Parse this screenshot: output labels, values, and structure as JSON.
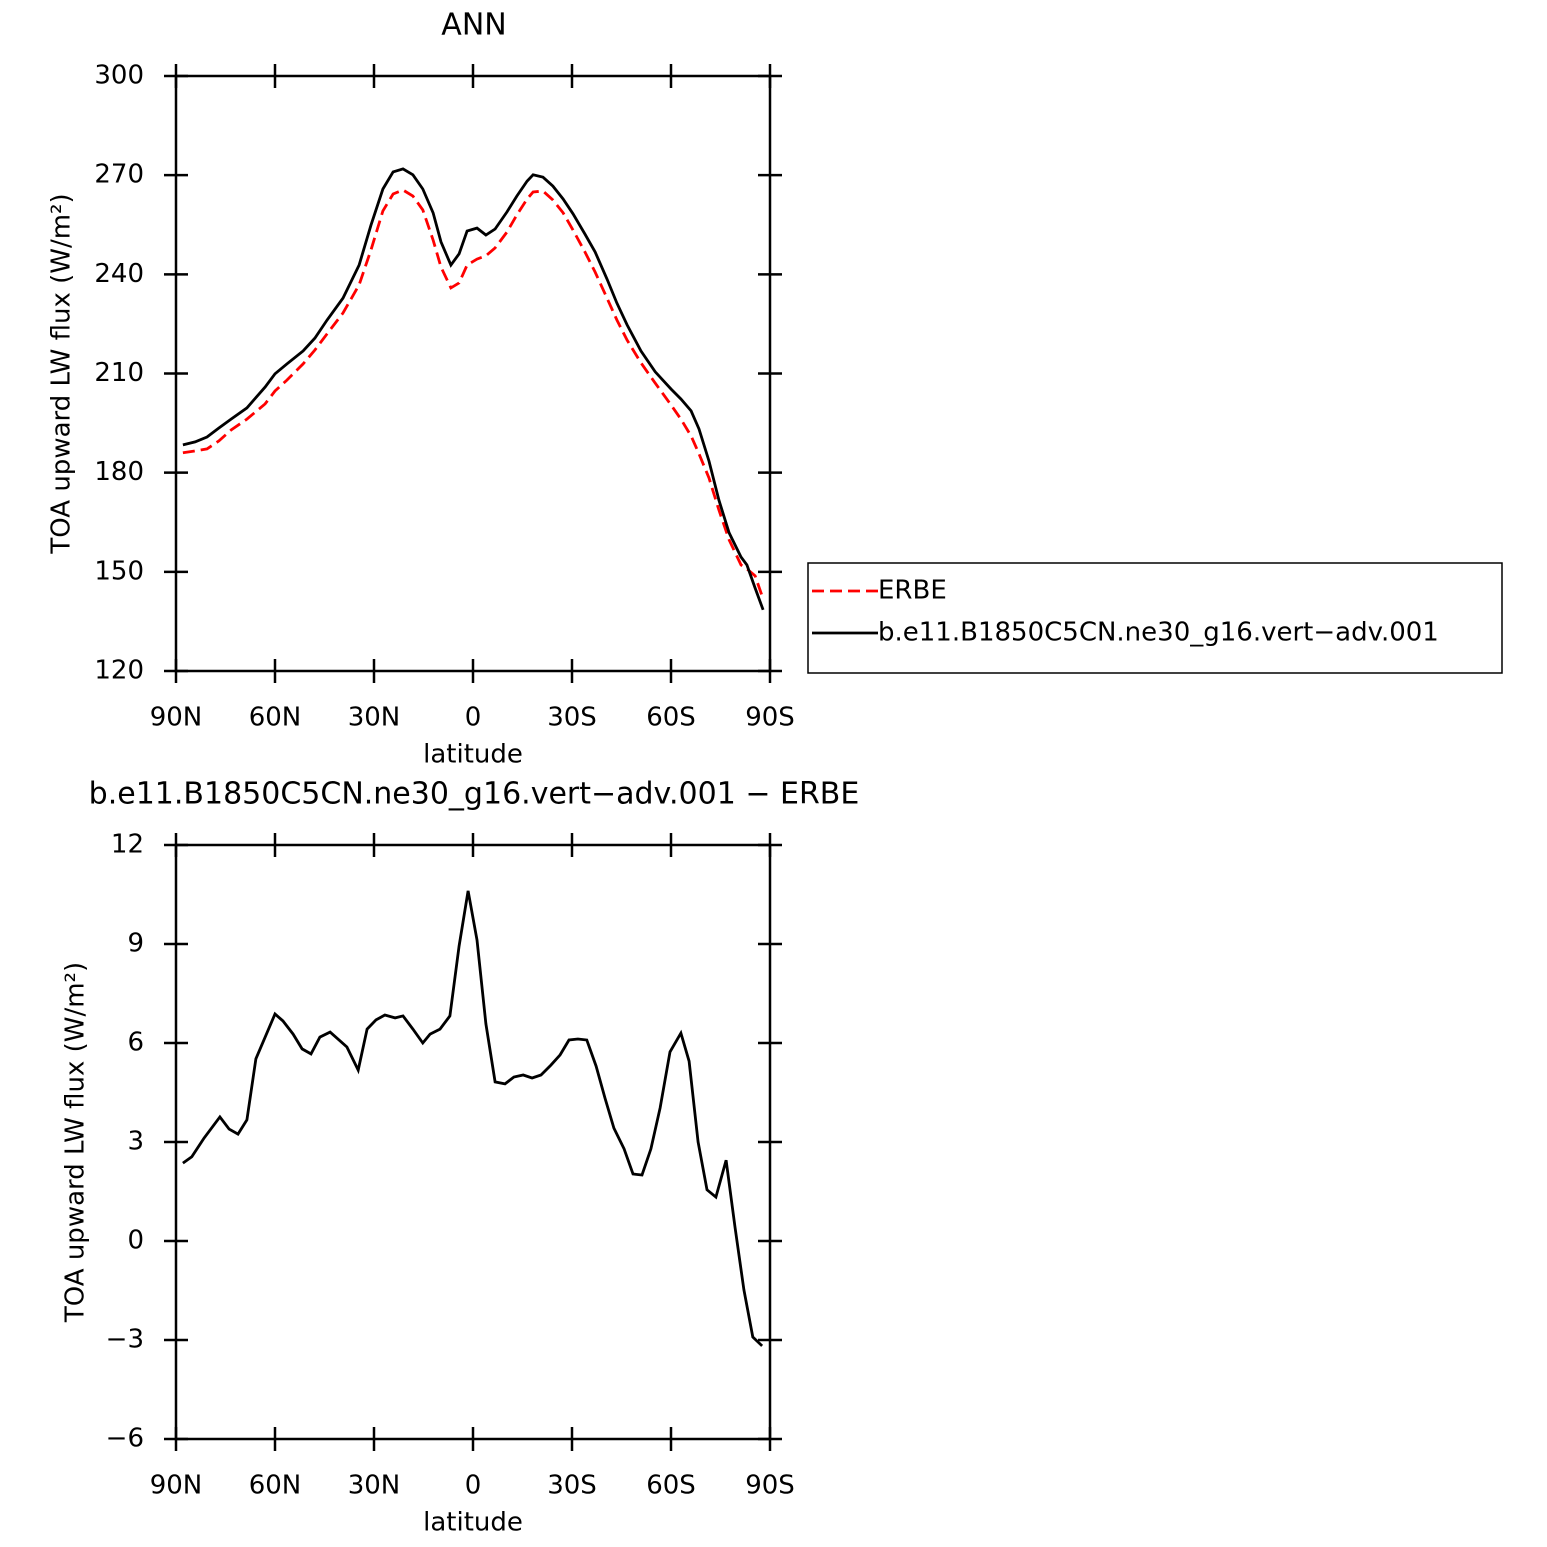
{
  "chart_data": [
    {
      "type": "line",
      "title": "ANN",
      "xlabel": "latitude",
      "ylabel": "TOA upward LW flux (W/m²)",
      "x": [
        87.9,
        84.2,
        80.6,
        77.0,
        73.3,
        68.5,
        63.0,
        60.0,
        56.4,
        51.5,
        47.9,
        44.2,
        39.4,
        34.5,
        30.9,
        27.3,
        24.2,
        21.2,
        18.2,
        15.2,
        12.1,
        9.7,
        6.7,
        4.2,
        1.8,
        -1.2,
        -3.9,
        -6.7,
        -10.3,
        -13.3,
        -16.4,
        -18.2,
        -21.2,
        -24.2,
        -27.3,
        -30.3,
        -33.9,
        -37.0,
        -40.6,
        -43.6,
        -46.7,
        -50.9,
        -55.2,
        -60.0,
        -63.0,
        -66.1,
        -68.5,
        -71.5,
        -74.5,
        -77.6,
        -81.2,
        -83.0,
        -85.5,
        -87.9
      ],
      "series": [
        {
          "name": "ERBE",
          "color": "#ff0000",
          "style": "dashed",
          "values": [
            186.0,
            186.6,
            187.2,
            189.6,
            192.9,
            196.2,
            200.8,
            204.7,
            208.0,
            212.9,
            217.1,
            222.0,
            228.3,
            236.8,
            247.4,
            259.2,
            264.3,
            265.5,
            263.7,
            259.5,
            250.4,
            242.2,
            235.9,
            237.4,
            242.8,
            244.6,
            245.6,
            248.0,
            252.8,
            258.0,
            262.8,
            264.9,
            265.2,
            262.5,
            258.6,
            253.4,
            246.8,
            240.7,
            232.8,
            226.2,
            220.1,
            213.2,
            207.1,
            200.5,
            196.2,
            191.1,
            185.7,
            178.4,
            168.7,
            159.7,
            152.1,
            150.9,
            148.8,
            141.8
          ]
        },
        {
          "name": "b.e11.B1850C5CN.ne30_g16.vert−adv.001",
          "color": "#000000",
          "style": "solid",
          "values": [
            188.4,
            189.3,
            190.8,
            193.5,
            196.2,
            199.6,
            205.9,
            209.9,
            212.9,
            216.8,
            220.7,
            226.2,
            232.8,
            242.8,
            254.9,
            265.8,
            271.0,
            271.9,
            270.1,
            265.8,
            258.6,
            249.8,
            242.8,
            246.2,
            253.1,
            254.0,
            251.9,
            253.7,
            258.9,
            263.7,
            268.2,
            270.1,
            269.4,
            266.7,
            262.8,
            258.3,
            252.2,
            246.8,
            238.6,
            231.3,
            224.7,
            216.8,
            210.5,
            205.3,
            202.3,
            198.7,
            193.2,
            183.5,
            171.7,
            161.8,
            154.5,
            152.1,
            145.1,
            138.5
          ]
        }
      ],
      "xlim": [
        90,
        -90
      ],
      "xticks": [
        {
          "value": 90,
          "label": "90N"
        },
        {
          "value": 60,
          "label": "60N"
        },
        {
          "value": 30,
          "label": "30N"
        },
        0,
        {
          "value": -30,
          "label": "30S"
        },
        {
          "value": -60,
          "label": "60S"
        },
        {
          "value": -90,
          "label": "90S"
        }
      ],
      "ylim": [
        120,
        300
      ],
      "yticks": [
        120,
        150,
        180,
        210,
        240,
        270,
        300
      ],
      "legend": "right"
    },
    {
      "type": "line",
      "title": "b.e11.B1850C5CN.ne30_g16.vert−adv.001 − ERBE",
      "xlabel": "latitude",
      "ylabel": "TOA upward LW flux (W/m²)",
      "x": [
        87.9,
        85.2,
        81.5,
        76.7,
        73.9,
        71.2,
        68.5,
        65.8,
        60.0,
        57.6,
        54.5,
        51.8,
        49.1,
        46.4,
        43.3,
        38.2,
        34.8,
        32.1,
        29.4,
        26.7,
        23.6,
        21.2,
        18.2,
        15.2,
        13.0,
        10.0,
        7.0,
        4.2,
        1.5,
        -1.2,
        -3.9,
        -6.7,
        -9.7,
        -12.4,
        -15.2,
        -17.9,
        -20.6,
        -23.6,
        -26.4,
        -29.1,
        -31.8,
        -34.5,
        -37.3,
        -40.0,
        -42.7,
        -45.8,
        -48.5,
        -51.2,
        -53.9,
        -56.7,
        -59.7,
        -63.0,
        -65.5,
        -68.2,
        -70.9,
        -73.6,
        -76.7,
        -79.4,
        -82.1,
        -84.8,
        -87.6
      ],
      "values": [
        2.36,
        2.55,
        3.12,
        3.76,
        3.39,
        3.24,
        3.67,
        5.52,
        6.88,
        6.67,
        6.27,
        5.82,
        5.67,
        6.18,
        6.33,
        5.88,
        5.18,
        6.42,
        6.7,
        6.85,
        6.76,
        6.82,
        6.42,
        6.0,
        6.27,
        6.42,
        6.82,
        8.94,
        10.61,
        9.12,
        6.58,
        4.82,
        4.76,
        4.97,
        5.03,
        4.94,
        5.03,
        5.33,
        5.64,
        6.09,
        6.12,
        6.09,
        5.3,
        4.33,
        3.42,
        2.79,
        2.03,
        2.0,
        2.79,
        4.03,
        5.73,
        6.3,
        5.45,
        3.0,
        1.55,
        1.33,
        2.45,
        0.42,
        -1.48,
        -2.91,
        -3.18
      ],
      "color": "#000000",
      "xlim": [
        90,
        -90
      ],
      "xticks": [
        {
          "value": 90,
          "label": "90N"
        },
        {
          "value": 60,
          "label": "60N"
        },
        {
          "value": 30,
          "label": "30N"
        },
        0,
        {
          "value": -30,
          "label": "30S"
        },
        {
          "value": -60,
          "label": "60S"
        },
        {
          "value": -90,
          "label": "90S"
        }
      ],
      "ylim": [
        -6,
        12
      ],
      "yticks": [
        {
          "value": -6,
          "label": "−6"
        },
        {
          "value": -3,
          "label": "−3"
        },
        0,
        3,
        6,
        9,
        12
      ]
    }
  ]
}
